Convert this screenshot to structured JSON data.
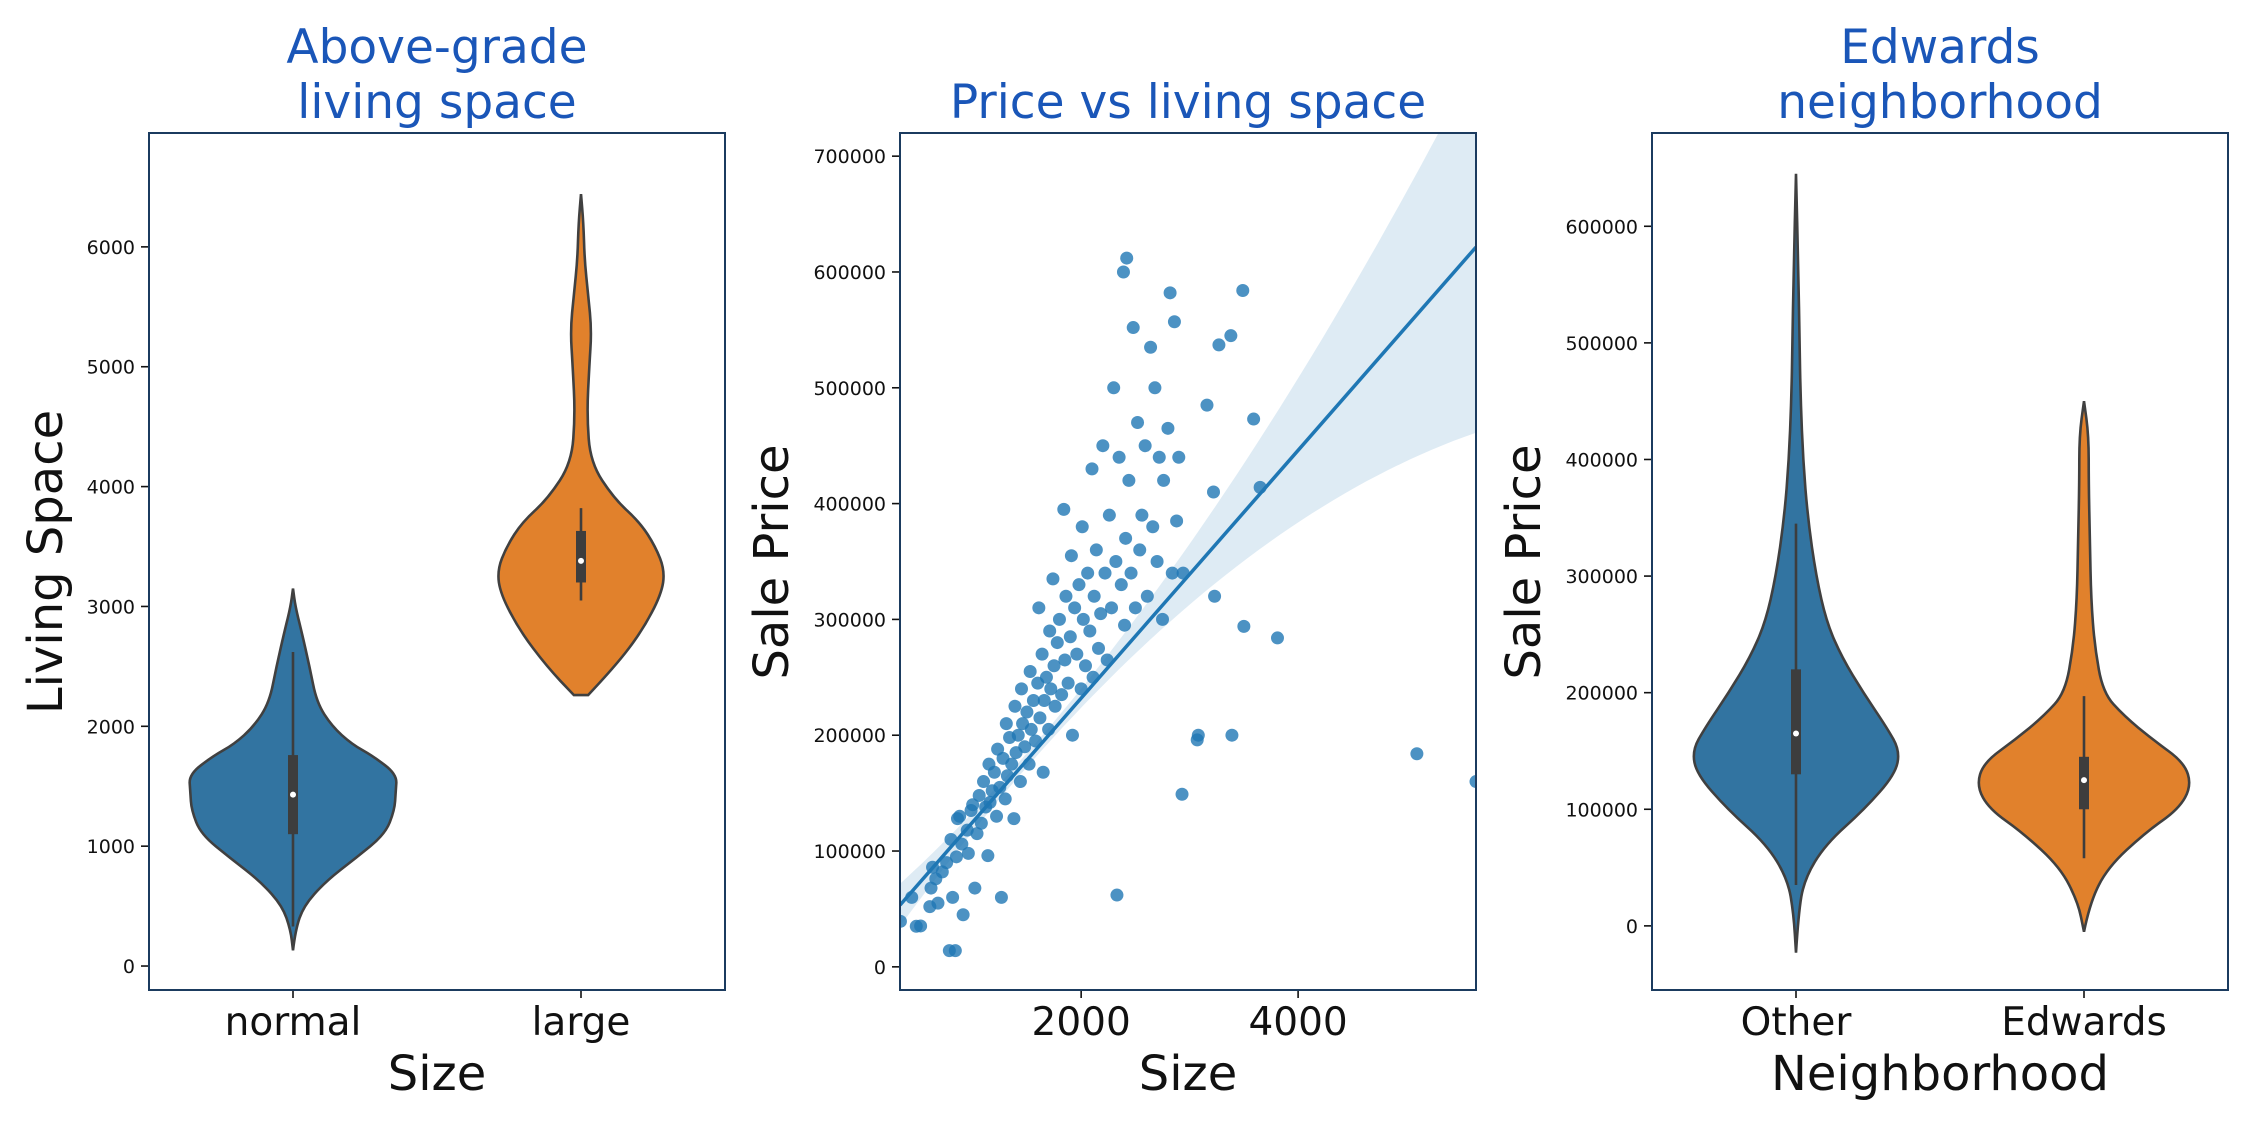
{
  "chart_data": [
    {
      "type": "violin",
      "title": "Above-grade\nliving space",
      "xlabel": "Size",
      "ylabel": "Living Space",
      "categories": [
        "normal",
        "large"
      ],
      "ylim": [
        -200,
        6950
      ],
      "yticks": [
        0,
        1000,
        2000,
        3000,
        4000,
        5000,
        6000
      ],
      "colors": [
        "#3274a1",
        "#e1812c"
      ],
      "violins": [
        {
          "category": "normal",
          "min": 130,
          "max": 3150,
          "q1": 1100,
          "median": 1430,
          "q3": 1760,
          "whisker_low": 330,
          "whisker_high": 2620,
          "profile": [
            [
              130,
              0.0
            ],
            [
              300,
              0.02
            ],
            [
              500,
              0.09
            ],
            [
              700,
              0.27
            ],
            [
              900,
              0.53
            ],
            [
              1100,
              0.78
            ],
            [
              1300,
              0.86
            ],
            [
              1450,
              0.87
            ],
            [
              1600,
              0.88
            ],
            [
              1750,
              0.68
            ],
            [
              1850,
              0.5
            ],
            [
              2000,
              0.33
            ],
            [
              2200,
              0.2
            ],
            [
              2500,
              0.14
            ],
            [
              2800,
              0.07
            ],
            [
              3000,
              0.02
            ],
            [
              3150,
              0.0
            ]
          ]
        },
        {
          "category": "large",
          "min": 2260,
          "max": 6440,
          "q1": 3200,
          "median": 3380,
          "q3": 3630,
          "whisker_low": 3050,
          "whisker_high": 3820,
          "profile": [
            [
              2260,
              0.06
            ],
            [
              2500,
              0.29
            ],
            [
              2800,
              0.52
            ],
            [
              3100,
              0.68
            ],
            [
              3300,
              0.71
            ],
            [
              3500,
              0.63
            ],
            [
              3700,
              0.5
            ],
            [
              3900,
              0.28
            ],
            [
              4200,
              0.08
            ],
            [
              4600,
              0.05
            ],
            [
              5000,
              0.07
            ],
            [
              5300,
              0.09
            ],
            [
              5600,
              0.06
            ],
            [
              5900,
              0.03
            ],
            [
              6200,
              0.02
            ],
            [
              6440,
              0.0
            ]
          ]
        }
      ]
    },
    {
      "type": "scatter",
      "title": "Price vs living space",
      "xlabel": "Size",
      "ylabel": "Sale Price",
      "xlim": [
        330,
        5640
      ],
      "ylim": [
        -20000,
        720000
      ],
      "xticks": [
        2000,
        4000
      ],
      "yticks": [
        0,
        100000,
        200000,
        300000,
        400000,
        500000,
        600000,
        700000
      ],
      "color": "#1f77b4",
      "regression": {
        "slope": 107,
        "intercept": 18000,
        "x_range": [
          330,
          5640
        ]
      },
      "points": [
        [
          334,
          39300
        ],
        [
          438,
          60000
        ],
        [
          480,
          35000
        ],
        [
          520,
          35300
        ],
        [
          605,
          52000
        ],
        [
          616,
          68000
        ],
        [
          630,
          86000
        ],
        [
          660,
          76000
        ],
        [
          680,
          55000
        ],
        [
          720,
          82000
        ],
        [
          760,
          90000
        ],
        [
          785,
          14000
        ],
        [
          800,
          110000
        ],
        [
          815,
          60000
        ],
        [
          840,
          14000
        ],
        [
          850,
          95000
        ],
        [
          860,
          128000
        ],
        [
          880,
          130000
        ],
        [
          900,
          106000
        ],
        [
          912,
          45000
        ],
        [
          950,
          118000
        ],
        [
          960,
          98000
        ],
        [
          985,
          135000
        ],
        [
          1000,
          140000
        ],
        [
          1020,
          68000
        ],
        [
          1040,
          115000
        ],
        [
          1060,
          148000
        ],
        [
          1080,
          124000
        ],
        [
          1100,
          160000
        ],
        [
          1120,
          138000
        ],
        [
          1140,
          96000
        ],
        [
          1150,
          175000
        ],
        [
          1160,
          142000
        ],
        [
          1180,
          152000
        ],
        [
          1200,
          168000
        ],
        [
          1220,
          130000
        ],
        [
          1230,
          188000
        ],
        [
          1250,
          155000
        ],
        [
          1265,
          60000
        ],
        [
          1280,
          180000
        ],
        [
          1300,
          145000
        ],
        [
          1310,
          210000
        ],
        [
          1320,
          165000
        ],
        [
          1340,
          198000
        ],
        [
          1360,
          175000
        ],
        [
          1380,
          128000
        ],
        [
          1390,
          225000
        ],
        [
          1400,
          185000
        ],
        [
          1420,
          200000
        ],
        [
          1440,
          160000
        ],
        [
          1450,
          240000
        ],
        [
          1460,
          210000
        ],
        [
          1480,
          190000
        ],
        [
          1500,
          220000
        ],
        [
          1520,
          175000
        ],
        [
          1530,
          255000
        ],
        [
          1540,
          205000
        ],
        [
          1560,
          230000
        ],
        [
          1580,
          195000
        ],
        [
          1600,
          245000
        ],
        [
          1610,
          310000
        ],
        [
          1620,
          215000
        ],
        [
          1640,
          270000
        ],
        [
          1650,
          168000
        ],
        [
          1660,
          230000
        ],
        [
          1680,
          250000
        ],
        [
          1700,
          205000
        ],
        [
          1710,
          290000
        ],
        [
          1720,
          240000
        ],
        [
          1740,
          335000
        ],
        [
          1750,
          260000
        ],
        [
          1760,
          225000
        ],
        [
          1780,
          280000
        ],
        [
          1800,
          300000
        ],
        [
          1820,
          235000
        ],
        [
          1840,
          395000
        ],
        [
          1850,
          265000
        ],
        [
          1860,
          320000
        ],
        [
          1880,
          245000
        ],
        [
          1900,
          285000
        ],
        [
          1910,
          355000
        ],
        [
          1920,
          200000
        ],
        [
          1940,
          310000
        ],
        [
          1960,
          270000
        ],
        [
          1980,
          330000
        ],
        [
          2000,
          240000
        ],
        [
          2010,
          380000
        ],
        [
          2020,
          300000
        ],
        [
          2040,
          260000
        ],
        [
          2060,
          340000
        ],
        [
          2080,
          290000
        ],
        [
          2100,
          430000
        ],
        [
          2110,
          250000
        ],
        [
          2120,
          320000
        ],
        [
          2140,
          360000
        ],
        [
          2160,
          275000
        ],
        [
          2180,
          305000
        ],
        [
          2200,
          450000
        ],
        [
          2220,
          340000
        ],
        [
          2240,
          265000
        ],
        [
          2260,
          390000
        ],
        [
          2280,
          310000
        ],
        [
          2300,
          500000
        ],
        [
          2320,
          350000
        ],
        [
          2330,
          62000
        ],
        [
          2350,
          440000
        ],
        [
          2370,
          330000
        ],
        [
          2390,
          600000
        ],
        [
          2400,
          295000
        ],
        [
          2410,
          370000
        ],
        [
          2420,
          612000
        ],
        [
          2440,
          420000
        ],
        [
          2460,
          340000
        ],
        [
          2480,
          552000
        ],
        [
          2500,
          310000
        ],
        [
          2520,
          470000
        ],
        [
          2540,
          360000
        ],
        [
          2560,
          390000
        ],
        [
          2590,
          450000
        ],
        [
          2610,
          320000
        ],
        [
          2640,
          535000
        ],
        [
          2660,
          380000
        ],
        [
          2680,
          500000
        ],
        [
          2700,
          350000
        ],
        [
          2720,
          440000
        ],
        [
          2750,
          300000
        ],
        [
          2760,
          420000
        ],
        [
          2800,
          465000
        ],
        [
          2820,
          582000
        ],
        [
          2840,
          340000
        ],
        [
          2860,
          557000
        ],
        [
          2880,
          385000
        ],
        [
          2900,
          440000
        ],
        [
          2930,
          149000
        ],
        [
          2940,
          340000
        ],
        [
          3070,
          196000
        ],
        [
          3080,
          200000
        ],
        [
          3160,
          485000
        ],
        [
          3220,
          410000
        ],
        [
          3230,
          320000
        ],
        [
          3270,
          537000
        ],
        [
          3380,
          545000
        ],
        [
          3390,
          200000
        ],
        [
          3490,
          584000
        ],
        [
          3500,
          294000
        ],
        [
          3590,
          473000
        ],
        [
          3650,
          414000
        ],
        [
          3810,
          284000
        ],
        [
          5095,
          184000
        ],
        [
          5640,
          160000
        ]
      ]
    },
    {
      "type": "violin",
      "title": "Edwards\nneighborhood",
      "xlabel": "Neighborhood",
      "ylabel": "Sale Price",
      "categories": [
        "Other",
        "Edwards"
      ],
      "ylim": [
        -55000,
        680000
      ],
      "yticks": [
        0,
        100000,
        200000,
        300000,
        400000,
        500000,
        600000
      ],
      "colors": [
        "#3274a1",
        "#e1812c"
      ],
      "violins": [
        {
          "category": "Other",
          "min": -23000,
          "max": 645000,
          "q1": 130000,
          "median": 165000,
          "q3": 220000,
          "whisker_low": 35000,
          "whisker_high": 345000,
          "profile": [
            [
              -23000,
              0.0
            ],
            [
              10000,
              0.02
            ],
            [
              40000,
              0.07
            ],
            [
              70000,
              0.25
            ],
            [
              100000,
              0.58
            ],
            [
              130000,
              0.84
            ],
            [
              150000,
              0.88
            ],
            [
              170000,
              0.77
            ],
            [
              200000,
              0.57
            ],
            [
              230000,
              0.39
            ],
            [
              260000,
              0.26
            ],
            [
              300000,
              0.17
            ],
            [
              350000,
              0.1
            ],
            [
              400000,
              0.06
            ],
            [
              450000,
              0.04
            ],
            [
              500000,
              0.03
            ],
            [
              560000,
              0.02
            ],
            [
              645000,
              0.0
            ]
          ]
        },
        {
          "category": "Edwards",
          "min": -5000,
          "max": 450000,
          "q1": 100000,
          "median": 125000,
          "q3": 145000,
          "whisker_low": 58000,
          "whisker_high": 197000,
          "profile": [
            [
              -5000,
              0.0
            ],
            [
              20000,
              0.05
            ],
            [
              50000,
              0.2
            ],
            [
              80000,
              0.52
            ],
            [
              100000,
              0.8
            ],
            [
              120000,
              0.91
            ],
            [
              140000,
              0.85
            ],
            [
              160000,
              0.58
            ],
            [
              180000,
              0.34
            ],
            [
              200000,
              0.16
            ],
            [
              240000,
              0.09
            ],
            [
              280000,
              0.06
            ],
            [
              330000,
              0.05
            ],
            [
              380000,
              0.04
            ],
            [
              420000,
              0.04
            ],
            [
              450000,
              0.0
            ]
          ]
        }
      ]
    }
  ]
}
